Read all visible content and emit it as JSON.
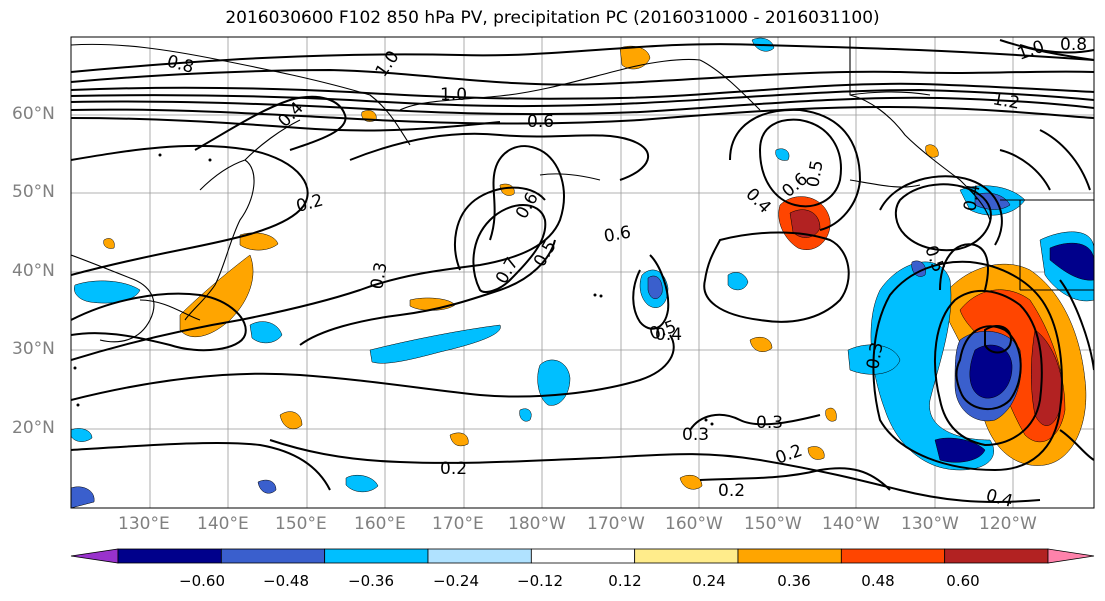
{
  "title": "2016030600 F102 850 hPa PV, precipitation PC (2016031000 - 2016031100)",
  "lat_labels": [
    "60°N",
    "50°N",
    "40°N",
    "30°N",
    "20°N"
  ],
  "lon_labels": [
    "130°E",
    "140°E",
    "150°E",
    "160°E",
    "170°E",
    "180°W",
    "170°W",
    "160°W",
    "150°W",
    "140°W",
    "130°W",
    "120°W"
  ],
  "colorbar": {
    "ticks": [
      "−0.60",
      "−0.48",
      "−0.36",
      "−0.24",
      "−0.12",
      "0.12",
      "0.24",
      "0.36",
      "0.48",
      "0.60"
    ],
    "colors": [
      "#9932cc",
      "#00008b",
      "#3a5fcd",
      "#00bfff",
      "#b0e2ff",
      "#ffffff",
      "#ffec8b",
      "#ffa500",
      "#ff4500",
      "#b22222",
      "#ff82ab"
    ]
  },
  "contour_labels": [
    "0.8",
    "1.0",
    "1.0",
    "0.4",
    "0.6",
    "0.2",
    "0.3",
    "0.6",
    "0.5",
    "0.7",
    "0.6",
    "0.5",
    "0.4",
    "0.4",
    "0.6",
    "0.5",
    "0.4",
    "1.2",
    "0.5",
    "0.3",
    "0.3",
    "0.3",
    "0.2",
    "0.2",
    "0.4",
    "0.2",
    "1.0",
    "0.8"
  ]
}
